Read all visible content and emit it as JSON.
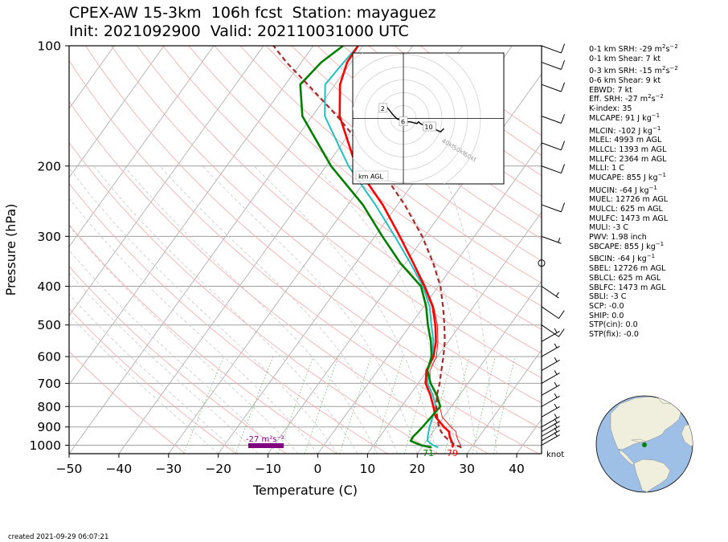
{
  "title": {
    "line1": "CPEX-AW 15-3km  106h fcst  Station: mayaguez",
    "line2": "Init: 2021092900  Valid: 202110031000 UTC"
  },
  "created": "created 2021-09-29 06:07:21",
  "hodograph": {
    "rings": [
      "10kt",
      "20kt",
      "30kt",
      "40kt",
      "50kt",
      "60kt"
    ],
    "height_labels": [
      "2",
      "6",
      "10"
    ],
    "footer": "km AGL",
    "srh_label": "-27 m²s⁻²",
    "srh_value": -27
  },
  "surface": {
    "dewpoint_label": "71",
    "temperature_label": "79"
  },
  "barb_units": "knot",
  "stats": [
    {
      "label": "0-1 km SRH: -29 m",
      "sup": "2",
      "suffix": "s",
      "sup2": "−2"
    },
    {
      "label": "0-1 km Shear: 7 kt"
    },
    {
      "gap": true
    },
    {
      "label": "0-3 km SRH: -15 m",
      "sup": "2",
      "suffix": "s",
      "sup2": "−2"
    },
    {
      "label": "0-6 km Shear: 9 kt"
    },
    {
      "label": "EBWD: 7 kt"
    },
    {
      "label": "Eff. SRH: -27 m",
      "sup": "2",
      "suffix": "s",
      "sup2": "−2"
    },
    {
      "label": "K-index: 35"
    },
    {
      "label": "MLCAPE: 91 J kg",
      "sup": "−1"
    },
    {
      "gap": true
    },
    {
      "label": "MLCIN: -102 J kg",
      "sup": "−1"
    },
    {
      "label": "MLEL: 4993 m AGL"
    },
    {
      "label": "MLLCL: 1393 m AGL"
    },
    {
      "label": "MLLFC: 2364 m AGL"
    },
    {
      "label": "MLLI: 1 C"
    },
    {
      "label": "MUCAPE: 855 J kg",
      "sup": "−1"
    },
    {
      "gap": true
    },
    {
      "label": "MUCIN: -64 J kg",
      "sup": "−1"
    },
    {
      "label": "MUEL: 12726 m AGL"
    },
    {
      "label": "MULCL: 625 m AGL"
    },
    {
      "label": "MULFC: 1473 m AGL"
    },
    {
      "label": "MULI: -3 C"
    },
    {
      "label": "PWV: 1.98 inch"
    },
    {
      "label": "SBCAPE: 855 J kg",
      "sup": "−1"
    },
    {
      "gap": true
    },
    {
      "label": "SBCIN: -64 J kg",
      "sup": "−1"
    },
    {
      "label": "SBEL: 12726 m AGL"
    },
    {
      "label": "SBLCL: 625 m AGL"
    },
    {
      "label": "SBLFC: 1473 m AGL"
    },
    {
      "label": "SBLI: -3 C"
    },
    {
      "label": "SCP: -0.0"
    },
    {
      "label": "SHIP: 0.0"
    },
    {
      "label": "STP(cin): 0.0"
    },
    {
      "label": "STP(fix): -0.0"
    }
  ],
  "colors": {
    "temperature": "#ff0000",
    "dewpoint": "#008000",
    "wetbulb": "#20c0c0",
    "parcel": "#a52a2a",
    "virtual_temp": "#ff0000",
    "srh_bar": "#800080",
    "isobar": "#a0a0a0",
    "isotherm": "#b0b0b0",
    "dry_adiabat": "#f4b0b0",
    "moist_adiabat": "#c8c8c8",
    "mixing_ratio": "#80c080",
    "globe_ocean": "#9ebfe6",
    "globe_land": "#f0eedc",
    "station": "#008000"
  },
  "chart_data": {
    "type": "line",
    "subtype": "skew-T log-p",
    "xlabel": "Temperature (C)",
    "ylabel": "Pressure (hPa)",
    "xlim": [
      -50,
      45
    ],
    "ylim": [
      1050,
      100
    ],
    "x_ticks": [
      "−50",
      "−40",
      "−30",
      "−20",
      "−10",
      "0",
      "10",
      "20",
      "30",
      "40"
    ],
    "x_tick_values": [
      -50,
      -40,
      -30,
      -20,
      -10,
      0,
      10,
      20,
      30,
      40
    ],
    "y_ticks": [
      "100",
      "200",
      "300",
      "400",
      "500",
      "600",
      "700",
      "800",
      "900",
      "1000"
    ],
    "y_tick_values": [
      100,
      200,
      300,
      400,
      500,
      600,
      700,
      800,
      900,
      1000
    ],
    "pressure": [
      1013,
      1000,
      975,
      950,
      925,
      900,
      850,
      800,
      750,
      700,
      650,
      600,
      550,
      500,
      450,
      400,
      350,
      300,
      250,
      200,
      150,
      125,
      110,
      100
    ],
    "series": [
      {
        "key": "temperature",
        "values": [
          26.1,
          26.0,
          25.0,
          24.0,
          23.2,
          21.5,
          18.4,
          16.4,
          14.2,
          11.5,
          9.8,
          9.2,
          7.5,
          5.0,
          1.8,
          -2.8,
          -8.4,
          -15.0,
          -23.0,
          -34.0,
          -44.5,
          -49.0,
          -50.8,
          -51.0
        ]
      },
      {
        "key": "dewpoint",
        "values": [
          22.0,
          19.5,
          16.8,
          16.7,
          17.0,
          17.2,
          17.5,
          17.8,
          15.5,
          12.5,
          10.0,
          8.8,
          6.5,
          3.5,
          0.5,
          -3.5,
          -11.0,
          -18.5,
          -27.0,
          -39.0,
          -52.0,
          -57.0,
          -56.0,
          -54.0
        ]
      },
      {
        "key": "wetbulb",
        "values": [
          23.3,
          22.0,
          20.2,
          19.6,
          19.1,
          18.6,
          17.8,
          16.9,
          14.7,
          11.9,
          9.9,
          9.0,
          7.0,
          4.2,
          1.2,
          -3.1,
          -9.0,
          -16.0,
          -24.5,
          -35.5,
          -47.5,
          -52.0,
          -51.5,
          -51.0
        ]
      },
      {
        "key": "parcel",
        "values": [
          28.0,
          26.5,
          24.6,
          23.0,
          21.6,
          20.5,
          18.7,
          17.0,
          15.5,
          14.3,
          12.8,
          11.2,
          9.3,
          6.8,
          3.9,
          0.4,
          -4.4,
          -10.5,
          -18.6,
          -29.5,
          -45.0,
          -55.5,
          -63.0,
          -68.0
        ]
      },
      {
        "key": "virtual_temp",
        "values": [
          27.7,
          27.5,
          26.4,
          25.4,
          24.6,
          22.9,
          19.7,
          17.7,
          15.3,
          12.4,
          10.5,
          9.8,
          7.9,
          5.4,
          2.0,
          -2.6,
          -8.3,
          -15.0,
          -23.0,
          -34.0,
          -44.5,
          -49.0,
          -50.8,
          -51.0
        ]
      }
    ],
    "wind_barbs": [
      {
        "p": 1000,
        "speed_kt": 7
      },
      {
        "p": 975,
        "speed_kt": 7
      },
      {
        "p": 950,
        "speed_kt": 6
      },
      {
        "p": 925,
        "speed_kt": 6
      },
      {
        "p": 900,
        "speed_kt": 6
      },
      {
        "p": 850,
        "speed_kt": 5
      },
      {
        "p": 800,
        "speed_kt": 5
      },
      {
        "p": 750,
        "speed_kt": 5
      },
      {
        "p": 700,
        "speed_kt": 5
      },
      {
        "p": 650,
        "speed_kt": 5
      },
      {
        "p": 600,
        "speed_kt": 5
      },
      {
        "p": 550,
        "speed_kt": 5
      },
      {
        "p": 500,
        "speed_kt": 10
      },
      {
        "p": 450,
        "speed_kt": 10
      },
      {
        "p": 400,
        "speed_kt": 5
      },
      {
        "p": 350,
        "speed_kt": 0
      },
      {
        "p": 300,
        "speed_kt": 5
      },
      {
        "p": 250,
        "speed_kt": 10
      },
      {
        "p": 200,
        "speed_kt": 10
      },
      {
        "p": 175,
        "speed_kt": 10
      },
      {
        "p": 150,
        "speed_kt": 10
      },
      {
        "p": 125,
        "speed_kt": 10
      },
      {
        "p": 110,
        "speed_kt": 10
      },
      {
        "p": 100,
        "speed_kt": 10
      }
    ],
    "hodograph_points": [
      [
        -6,
        3
      ],
      [
        -5,
        3.5
      ],
      [
        -3,
        1
      ],
      [
        -2,
        0
      ],
      [
        0,
        -1
      ],
      [
        0,
        -1.5
      ],
      [
        1,
        -1
      ],
      [
        2,
        -1
      ],
      [
        4,
        -1.5
      ],
      [
        4.5,
        -1
      ],
      [
        5,
        -1.5
      ],
      [
        6,
        -2
      ],
      [
        7,
        -2.5
      ],
      [
        8,
        -3
      ],
      [
        8.5,
        -2.5
      ],
      [
        9,
        -3
      ],
      [
        10,
        -3.5
      ],
      [
        11,
        -4
      ],
      [
        12,
        -3
      ]
    ]
  }
}
